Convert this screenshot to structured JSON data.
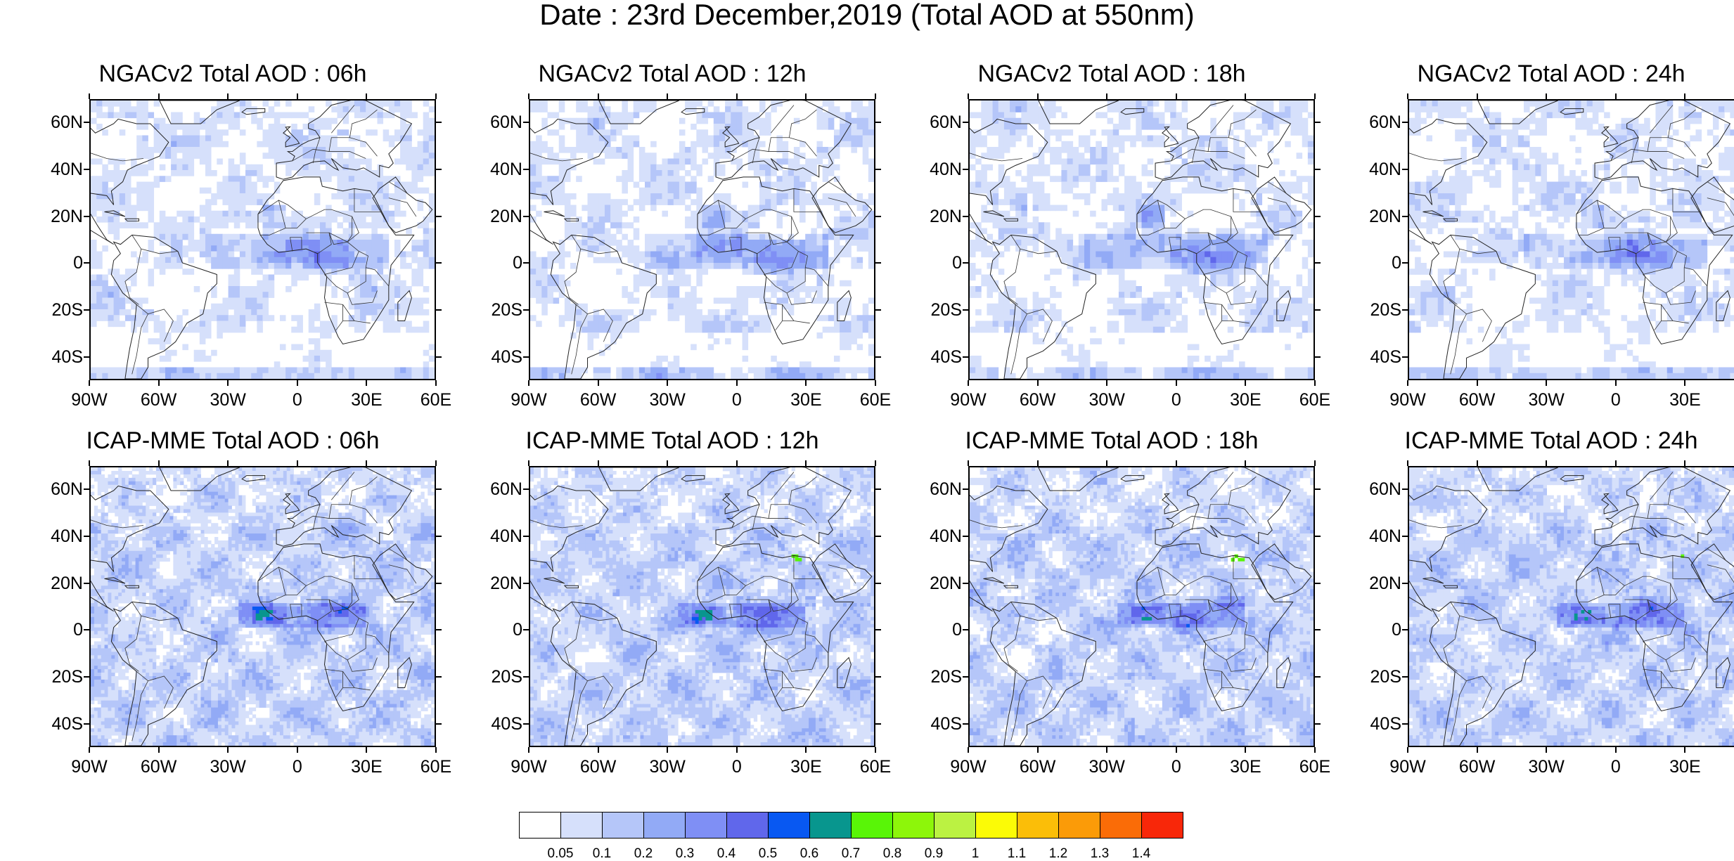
{
  "title": "Date : 23rd December,2019 (Total AOD at 550nm)",
  "panels": [
    {
      "title": "NGACv2 Total AOD : 06h",
      "model": "ngac"
    },
    {
      "title": "NGACv2 Total AOD : 12h",
      "model": "ngac"
    },
    {
      "title": "NGACv2 Total AOD : 18h",
      "model": "ngac"
    },
    {
      "title": "NGACv2 Total AOD : 24h",
      "model": "ngac"
    },
    {
      "title": "ICAP-MME Total AOD : 06h",
      "model": "icap"
    },
    {
      "title": "ICAP-MME Total AOD : 12h",
      "model": "icap"
    },
    {
      "title": "ICAP-MME Total AOD : 18h",
      "model": "icap"
    },
    {
      "title": "ICAP-MME Total AOD : 24h",
      "model": "icap"
    }
  ],
  "lat_labels": [
    "60N",
    "40N",
    "20N",
    "0",
    "20S",
    "40S"
  ],
  "lon_labels": [
    "90W",
    "60W",
    "30W",
    "0",
    "30E",
    "60E"
  ],
  "colorbar": {
    "colors": [
      "#ffffff",
      "#d6e0fb",
      "#b5c6f9",
      "#92aaf6",
      "#7f8ff5",
      "#6067eb",
      "#0858f2",
      "#08968e",
      "#59f507",
      "#8df60a",
      "#bbf242",
      "#fbfb06",
      "#fbbe08",
      "#fb9b08",
      "#fa6c07",
      "#f82709"
    ],
    "labels": [
      "0.05",
      "0.1",
      "0.2",
      "0.3",
      "0.4",
      "0.5",
      "0.6",
      "0.7",
      "0.8",
      "0.9",
      "1",
      "1.1",
      "1.2",
      "1.3",
      "1.4"
    ]
  }
}
